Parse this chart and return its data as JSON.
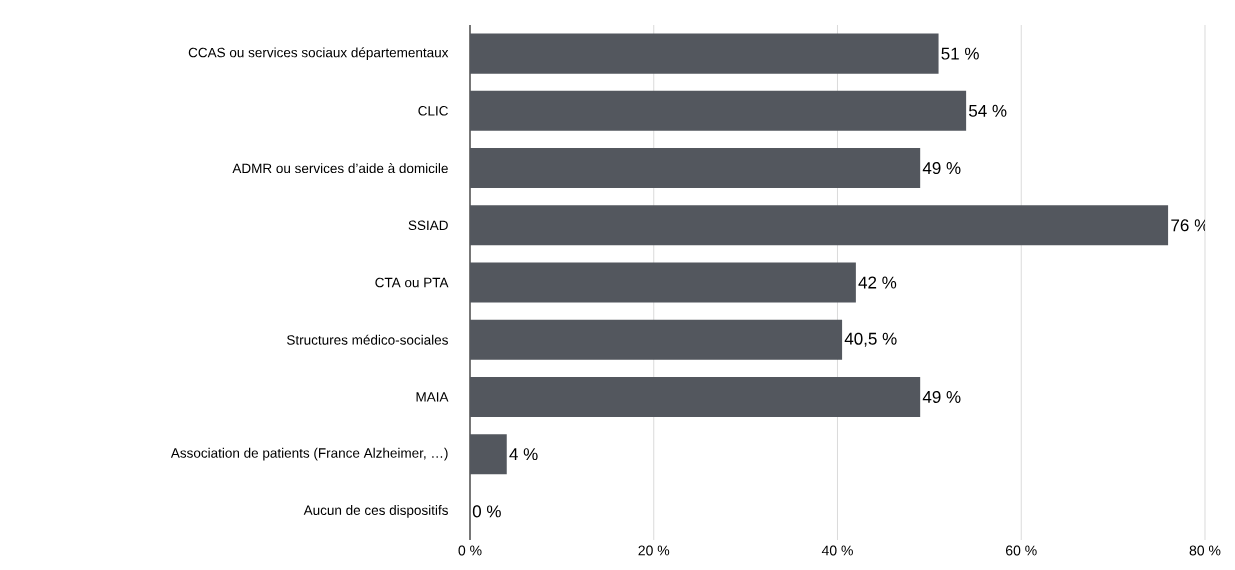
{
  "chart_data": {
    "type": "bar",
    "orientation": "horizontal",
    "categories": [
      "CCAS ou services sociaux départementaux",
      "CLIC",
      "ADMR ou services d’aide à domicile",
      "SSIAD",
      "CTA ou PTA",
      "Structures médico-sociales",
      "MAIA",
      "Association de patients (France Alzheimer, …)",
      "Aucun de ces dispositifs"
    ],
    "values": [
      51,
      54,
      49,
      76,
      42,
      40.5,
      49,
      4,
      0
    ],
    "value_labels": [
      "51 %",
      "54 %",
      "49 %",
      "76 %",
      "42 %",
      "40,5 %",
      "49 %",
      "4 %",
      "0 %"
    ],
    "color": "#53575e",
    "xlim": [
      0,
      80
    ],
    "xticks": [
      {
        "value": 0,
        "label": "0 %"
      },
      {
        "value": 20,
        "label": "20 %"
      },
      {
        "value": 40,
        "label": "40 %"
      },
      {
        "value": 60,
        "label": "60 %"
      },
      {
        "value": 80,
        "label": "80 %"
      }
    ],
    "grid": "x"
  }
}
